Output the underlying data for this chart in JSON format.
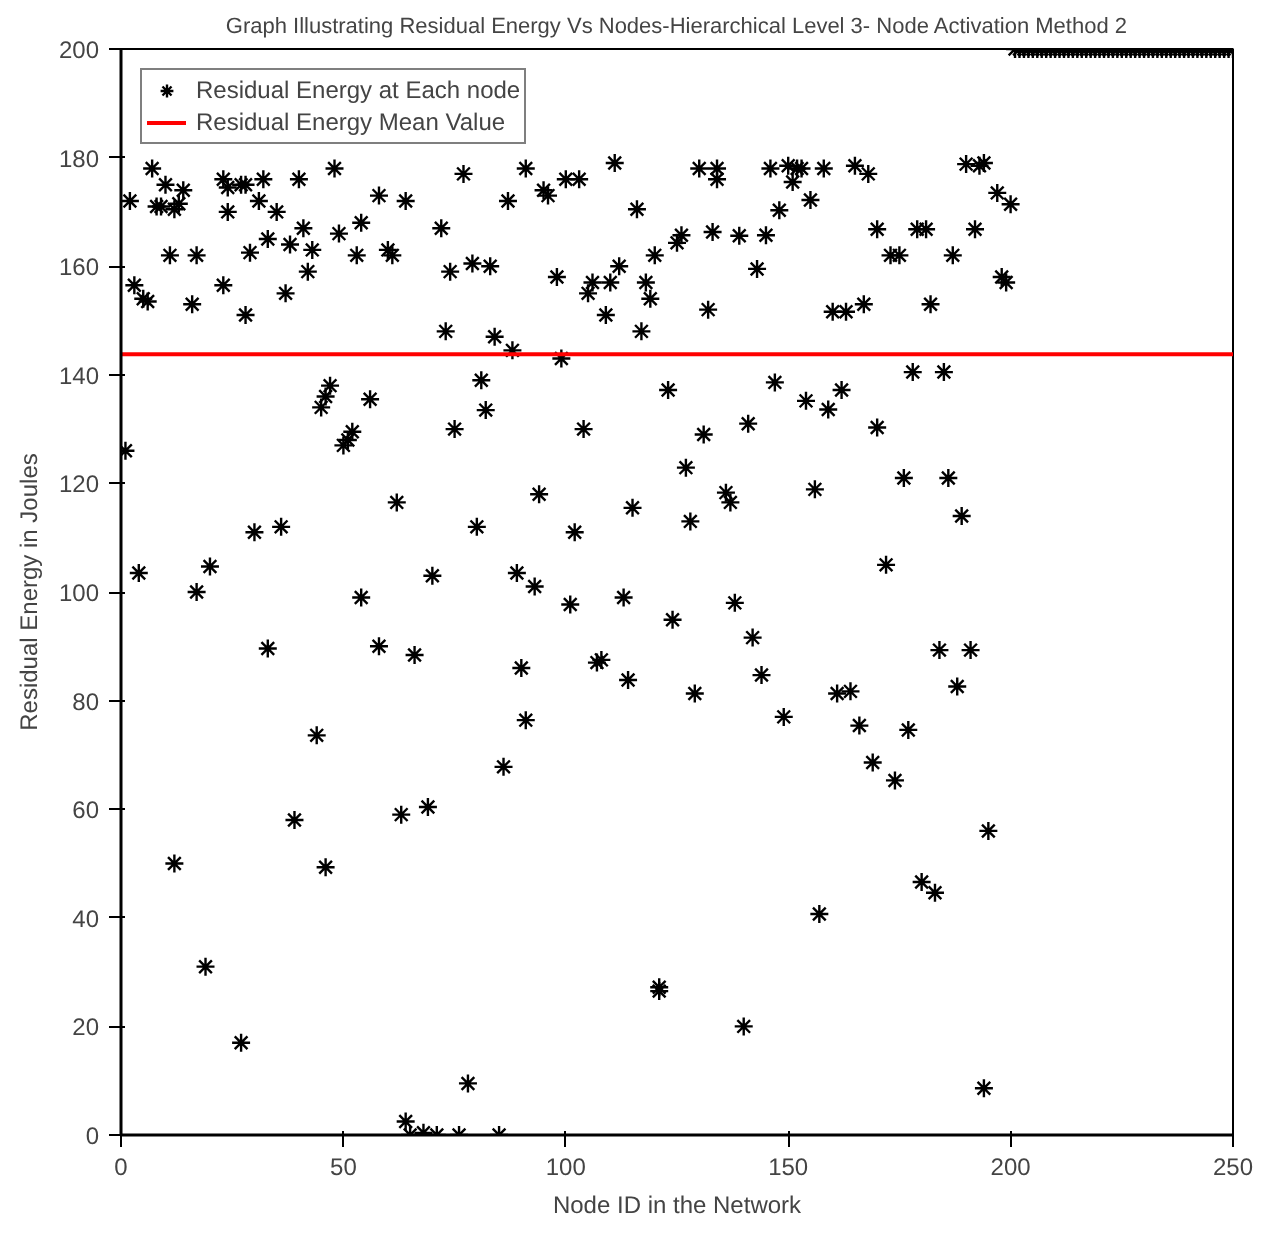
{
  "chart_data": {
    "type": "scatter",
    "title": "Graph Illustrating Residual Energy Vs Nodes-Hierarchical Level 3- Node Activation Method 2",
    "xlabel": "Node ID in the Network",
    "ylabel": "Residual Energy in Joules",
    "xlim": [
      0,
      250
    ],
    "ylim": [
      0,
      200
    ],
    "xticks": [
      0,
      50,
      100,
      150,
      200,
      250
    ],
    "yticks": [
      0,
      20,
      40,
      60,
      80,
      100,
      120,
      140,
      160,
      180,
      200
    ],
    "grid": false,
    "legend": "top left",
    "series": [
      {
        "name": "Residual Energy at Each node",
        "marker": "cross",
        "color": "#000000",
        "x": [
          1,
          2,
          3,
          4,
          5,
          6,
          7,
          8,
          9,
          10,
          11,
          12,
          12,
          13,
          14,
          16,
          17,
          17,
          19,
          20,
          23,
          23,
          24,
          24,
          27,
          27,
          28,
          28,
          29,
          30,
          31,
          32,
          33,
          33,
          35,
          36,
          37,
          38,
          39,
          40,
          41,
          42,
          43,
          44,
          45,
          46,
          46,
          47,
          48,
          49,
          50,
          51,
          52,
          53,
          54,
          54,
          56,
          58,
          58,
          60,
          61,
          62,
          63,
          64,
          64,
          65,
          66,
          68,
          69,
          70,
          71,
          72,
          73,
          74,
          75,
          76,
          77,
          78,
          79,
          80,
          81,
          82,
          83,
          84,
          85,
          86,
          87,
          88,
          89,
          90,
          91,
          91,
          93,
          94,
          95,
          96,
          98,
          99,
          100,
          101,
          102,
          103,
          104,
          105,
          106,
          107,
          108,
          109,
          110,
          111,
          112,
          113,
          114,
          115,
          116,
          117,
          118,
          119,
          120,
          121,
          121,
          123,
          124,
          125,
          126,
          127,
          128,
          129,
          130,
          131,
          132,
          133,
          134,
          134,
          136,
          137,
          138,
          139,
          140,
          141,
          142,
          143,
          144,
          145,
          146,
          147,
          148,
          149,
          150,
          151,
          152,
          153,
          154,
          155,
          156,
          157,
          158,
          159,
          160,
          161,
          162,
          163,
          164,
          165,
          166,
          167,
          168,
          169,
          170,
          170,
          172,
          173,
          174,
          175,
          176,
          177,
          178,
          179,
          180,
          181,
          182,
          183,
          184,
          185,
          186,
          187,
          188,
          189,
          190,
          191,
          192,
          193,
          194,
          194,
          195,
          197,
          198,
          199,
          200,
          201,
          202,
          203,
          204,
          205,
          206,
          207,
          208,
          209,
          210,
          211,
          212,
          213,
          214,
          215,
          216,
          217,
          218,
          219,
          220,
          221,
          222,
          223,
          224,
          225,
          226,
          227,
          228,
          229,
          230,
          231,
          232,
          233,
          234,
          235,
          236,
          237,
          238,
          239,
          240,
          241,
          242,
          243,
          244,
          245,
          246,
          247,
          248,
          249,
          250
        ],
        "values": [
          126,
          172,
          156.5,
          103.5,
          154,
          153.5,
          178,
          171,
          171,
          175,
          162,
          50,
          170.5,
          171.5,
          174,
          153,
          162,
          100,
          31,
          104.7,
          176,
          156.5,
          174.5,
          170,
          175,
          17,
          175,
          151,
          162.5,
          111,
          172,
          176,
          89.6,
          165,
          170,
          112,
          155,
          164,
          58,
          176,
          167,
          159,
          163,
          73.6,
          134,
          49.3,
          136,
          138,
          178,
          166,
          127,
          128,
          129.5,
          162,
          168,
          99,
          135.5,
          90,
          173,
          163,
          162,
          116.5,
          59,
          172,
          2.5,
          0,
          88.4,
          0.4,
          60.4,
          103,
          0,
          167,
          148,
          159,
          130,
          0,
          177,
          9.5,
          160.5,
          112,
          139,
          133.5,
          160,
          147,
          0,
          67.8,
          172,
          144.5,
          103.5,
          86,
          178,
          76.4,
          101,
          118,
          174,
          173,
          158,
          143,
          176,
          97.7,
          111,
          176,
          130,
          155,
          157,
          87,
          87.5,
          151,
          157,
          179,
          160,
          99,
          83.8,
          115.5,
          170.5,
          148,
          157,
          154,
          162,
          26.5,
          27.2,
          137.2,
          94.9,
          164.3,
          165.7,
          122.9,
          113,
          81.3,
          178,
          129,
          152,
          166.3,
          178,
          176,
          118.3,
          116.5,
          98,
          165.6,
          20,
          131,
          91.6,
          159.5,
          84.7,
          165.7,
          178,
          138.6,
          170.3,
          77,
          178.5,
          175.5,
          178,
          178,
          135.2,
          172.2,
          118.9,
          40.7,
          178,
          133.6,
          151.6,
          81.3,
          137.2,
          151.6,
          81.7,
          178.5,
          75.4,
          153,
          177,
          68.6,
          130.3,
          166.8,
          105,
          162,
          65.3,
          162,
          121,
          74.6,
          140.5,
          166.8,
          46.6,
          166.8,
          153,
          44.6,
          89.3,
          140.5,
          121,
          162,
          82.6,
          114,
          178.8,
          89.3,
          166.8,
          178.5,
          179,
          8.6,
          56,
          173.5,
          158,
          157,
          171.4,
          200,
          200,
          200,
          200,
          200,
          200,
          200,
          200,
          200,
          200,
          200,
          200,
          200,
          200,
          200,
          200,
          200,
          200,
          200,
          200,
          200,
          200,
          200,
          200,
          200,
          200,
          200,
          200,
          200,
          200,
          200,
          200,
          200,
          200,
          200,
          200,
          200,
          200,
          200,
          200,
          200,
          200,
          200,
          200,
          200,
          200,
          200,
          200,
          200,
          200
        ]
      },
      {
        "name": "Residual Energy Mean Value",
        "type": "line",
        "marker": "none",
        "color": "#ff0000",
        "x": [
          0,
          250
        ],
        "values": [
          143.8,
          143.8
        ]
      }
    ]
  }
}
